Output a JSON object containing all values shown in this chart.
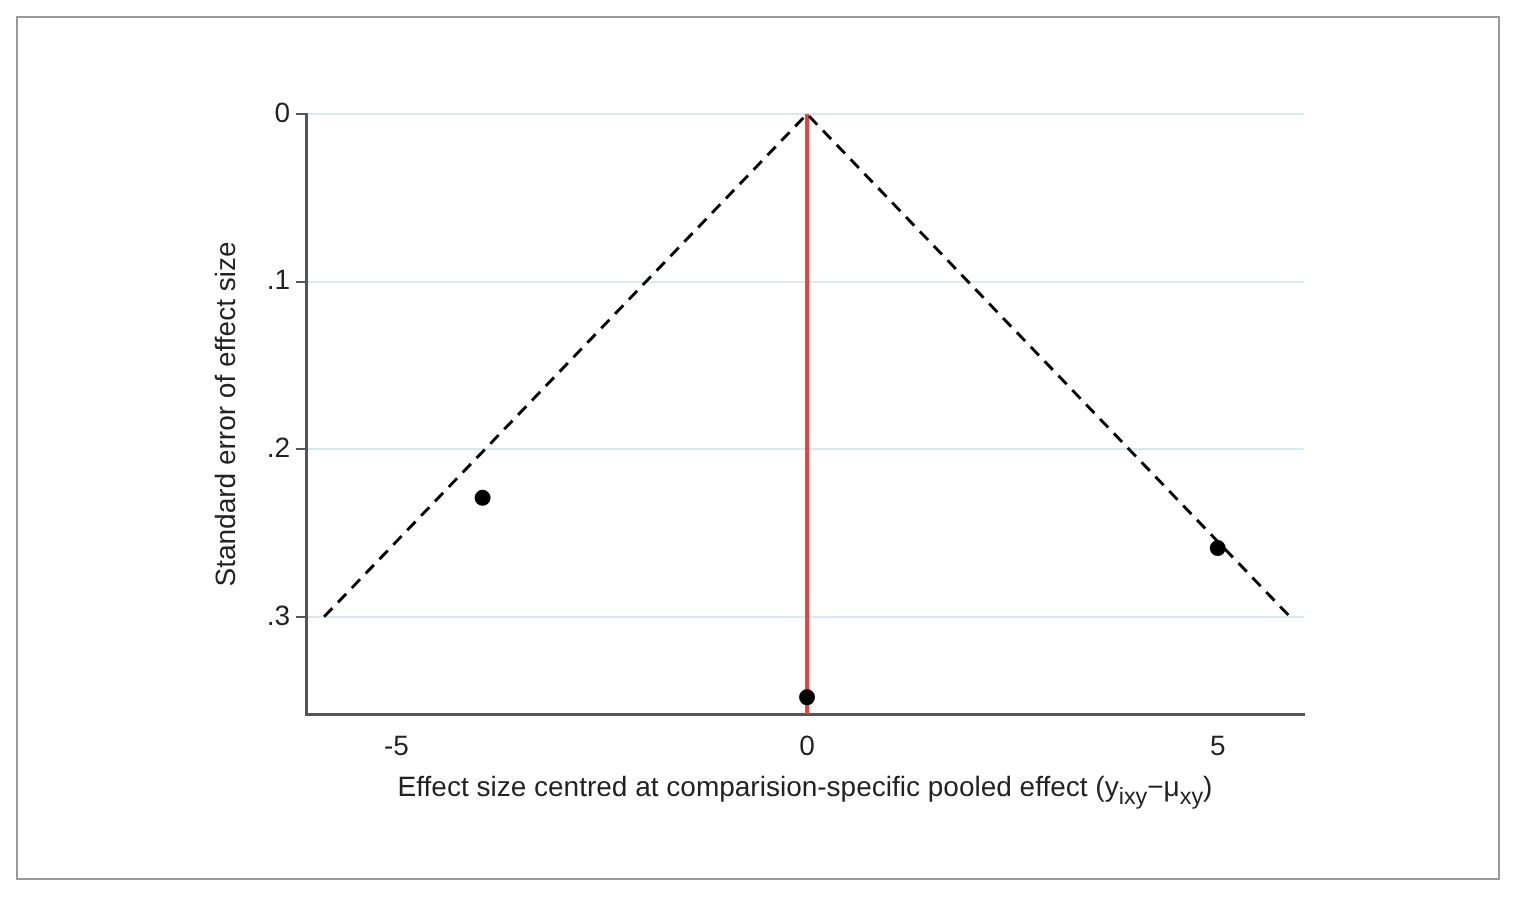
{
  "chart_data": {
    "type": "scatter",
    "xlabel": "Effect size centred at comparision-specific pooled effect (y$_{ixy}$−μ$_{xy}$)",
    "ylabel": "Standard error of effect size",
    "xlim": [
      -6.1,
      6.05
    ],
    "xticks": [
      -5,
      0,
      5
    ],
    "ylim": [
      0.358,
      0
    ],
    "yticks": [
      0,
      {
        "value": 0.1,
        "label": ".1"
      },
      {
        "value": 0.2,
        "label": ".2"
      },
      {
        "value": 0.3,
        "label": ".3"
      }
    ],
    "grid": "y",
    "legend": false,
    "series": [
      {
        "type": "line",
        "color": "#000000",
        "x": [
          -5.88,
          0,
          5.88
        ],
        "values": [
          0.3,
          0,
          0.3
        ],
        "line_style": "dashed",
        "marker": "none"
      },
      {
        "type": "scatter",
        "color": "#000000",
        "x": [
          -3.95,
          0,
          5.0
        ],
        "values": [
          0.229,
          0.348,
          0.259
        ],
        "marker": "circle"
      }
    ],
    "ref_lines": [
      {
        "axis": "x",
        "value": 0,
        "color": "#e8413c"
      }
    ]
  }
}
